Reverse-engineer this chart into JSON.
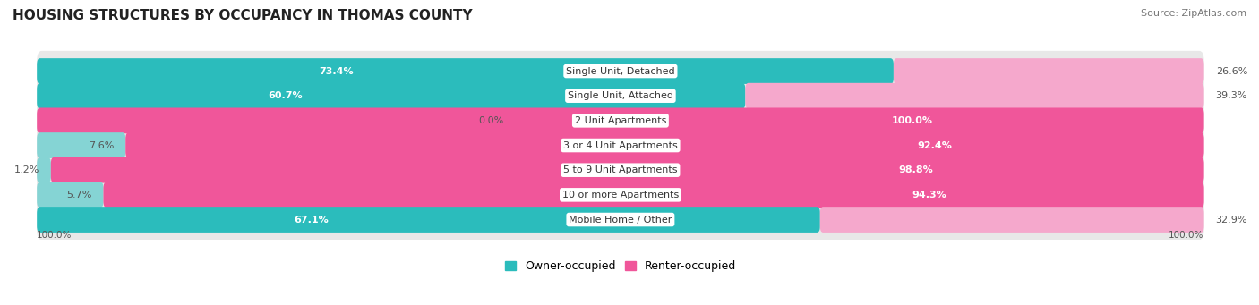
{
  "title": "HOUSING STRUCTURES BY OCCUPANCY IN THOMAS COUNTY",
  "source": "Source: ZipAtlas.com",
  "categories": [
    "Single Unit, Detached",
    "Single Unit, Attached",
    "2 Unit Apartments",
    "3 or 4 Unit Apartments",
    "5 to 9 Unit Apartments",
    "10 or more Apartments",
    "Mobile Home / Other"
  ],
  "owner_pct": [
    73.4,
    60.7,
    0.0,
    7.6,
    1.2,
    5.7,
    67.1
  ],
  "renter_pct": [
    26.6,
    39.3,
    100.0,
    92.4,
    98.8,
    94.3,
    32.9
  ],
  "owner_color_dark": "#2bbcbc",
  "owner_color_light": "#85d4d4",
  "renter_color_dark": "#f0569a",
  "renter_color_light": "#f5a8cc",
  "row_bg": "#e8e8e8",
  "title_fontsize": 11,
  "label_fontsize": 8,
  "value_fontsize": 8,
  "legend_fontsize": 9,
  "source_fontsize": 8,
  "bottom_left_label": "100.0%",
  "bottom_right_label": "100.0%"
}
